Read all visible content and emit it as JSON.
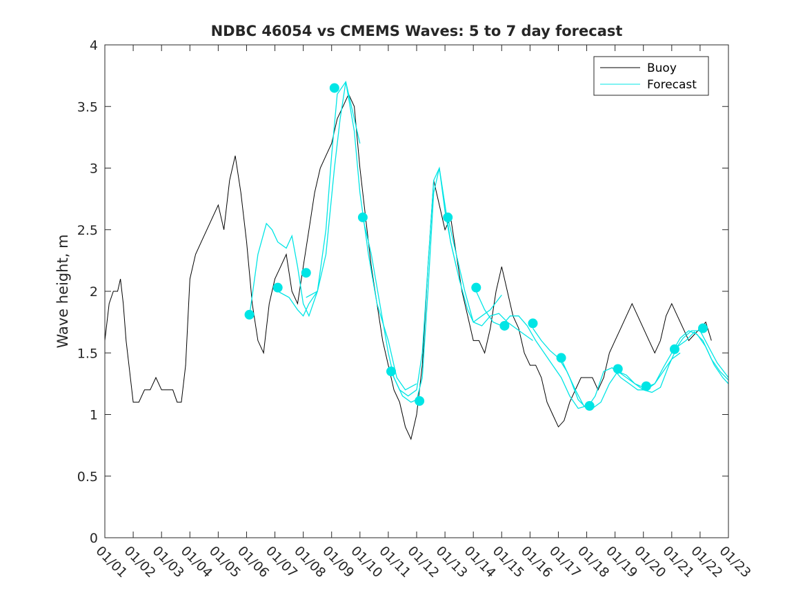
{
  "chart_data": {
    "type": "line",
    "title": "NDBC 46054 vs CMEMS Waves: 5 to 7 day forecast",
    "xlabel": "",
    "ylabel": "Wave height, m",
    "xlim": [
      0,
      22
    ],
    "ylim": [
      0,
      4
    ],
    "x_ticks": [
      0,
      1,
      2,
      3,
      4,
      5,
      6,
      7,
      8,
      9,
      10,
      11,
      12,
      13,
      14,
      15,
      16,
      17,
      18,
      19,
      20,
      21,
      22
    ],
    "x_tick_labels": [
      "01/01",
      "01/02",
      "01/03",
      "01/04",
      "01/05",
      "01/06",
      "01/07",
      "01/08",
      "01/09",
      "01/10",
      "01/11",
      "01/12",
      "01/13",
      "01/14",
      "01/15",
      "01/16",
      "01/17",
      "01/18",
      "01/19",
      "01/20",
      "01/21",
      "01/22",
      "01/23"
    ],
    "y_ticks": [
      0,
      0.5,
      1,
      1.5,
      2,
      2.5,
      3,
      3.5,
      4
    ],
    "y_tick_labels": [
      "0",
      "0.5",
      "1",
      "1.5",
      "2",
      "2.5",
      "3",
      "3.5",
      "4"
    ],
    "legend": {
      "position": "top-right",
      "entries": [
        {
          "name": "Buoy",
          "color": "#000000"
        },
        {
          "name": "Forecast",
          "color": "#00e5e5"
        }
      ]
    },
    "series": [
      {
        "name": "Buoy",
        "color": "#000000",
        "x": [
          0.0,
          0.15,
          0.3,
          0.45,
          0.55,
          0.65,
          0.75,
          0.9,
          1.0,
          1.2,
          1.4,
          1.6,
          1.8,
          2.0,
          2.2,
          2.4,
          2.55,
          2.7,
          2.85,
          3.0,
          3.2,
          3.4,
          3.6,
          3.8,
          4.0,
          4.2,
          4.4,
          4.6,
          4.8,
          5.0,
          5.2,
          5.4,
          5.6,
          5.8,
          6.0,
          6.2,
          6.4,
          6.6,
          6.8,
          7.0,
          7.2,
          7.4,
          7.6,
          7.8,
          8.0,
          8.2,
          8.4,
          8.6,
          8.8,
          9.0,
          9.2,
          9.4,
          9.6,
          9.8,
          10.0,
          10.2,
          10.4,
          10.6,
          10.8,
          11.0,
          11.2,
          11.4,
          11.6,
          11.8,
          12.0,
          12.2,
          12.4,
          12.6,
          12.8,
          13.0,
          13.2,
          13.4,
          13.6,
          13.8,
          14.0,
          14.2,
          14.4,
          14.6,
          14.8,
          15.0,
          15.2,
          15.4,
          15.6,
          15.8,
          16.0,
          16.2,
          16.4,
          16.6,
          16.8,
          17.0,
          17.2,
          17.4,
          17.6,
          17.8,
          18.0,
          18.2,
          18.4,
          18.6,
          18.8,
          19.0,
          19.2,
          19.4,
          19.6,
          19.8,
          20.0,
          20.2,
          20.4,
          20.6,
          20.8,
          21.0,
          21.2,
          21.4
        ],
        "values": [
          1.6,
          1.9,
          2.0,
          2.0,
          2.1,
          1.9,
          1.6,
          1.3,
          1.1,
          1.1,
          1.2,
          1.2,
          1.3,
          1.2,
          1.2,
          1.2,
          1.1,
          1.1,
          1.4,
          2.1,
          2.3,
          2.4,
          2.5,
          2.6,
          2.7,
          2.5,
          2.9,
          3.1,
          2.8,
          2.4,
          1.9,
          1.6,
          1.5,
          1.9,
          2.1,
          2.2,
          2.3,
          2.0,
          1.9,
          2.2,
          2.5,
          2.8,
          3.0,
          3.1,
          3.2,
          3.4,
          3.5,
          3.6,
          3.5,
          3.0,
          2.6,
          2.2,
          1.9,
          1.6,
          1.4,
          1.2,
          1.1,
          0.9,
          0.8,
          1.0,
          1.4,
          2.2,
          2.9,
          2.7,
          2.5,
          2.6,
          2.3,
          2.0,
          1.8,
          1.6,
          1.6,
          1.5,
          1.7,
          2.0,
          2.2,
          2.0,
          1.8,
          1.7,
          1.5,
          1.4,
          1.4,
          1.3,
          1.1,
          1.0,
          0.9,
          0.95,
          1.1,
          1.2,
          1.3,
          1.3,
          1.3,
          1.2,
          1.3,
          1.5,
          1.6,
          1.7,
          1.8,
          1.9,
          1.8,
          1.7,
          1.6,
          1.5,
          1.6,
          1.8,
          1.9,
          1.8,
          1.7,
          1.6,
          1.65,
          1.7,
          1.75,
          1.6
        ]
      },
      {
        "name": "Forecast",
        "color": "#00e5e5",
        "segments": [
          {
            "x": [
              5.1,
              5.4,
              5.7,
              5.9,
              6.1,
              6.4,
              6.6,
              6.8,
              7.0,
              7.2,
              7.5
            ],
            "values": [
              1.8,
              2.3,
              2.55,
              2.5,
              2.4,
              2.35,
              2.45,
              2.2,
              1.9,
              1.8,
              2.0
            ]
          },
          {
            "x": [
              6.1,
              6.5,
              6.8,
              7.0,
              7.2,
              7.5,
              7.8,
              8.1,
              8.3,
              8.5,
              8.8,
              9.0
            ],
            "values": [
              2.0,
              1.95,
              1.85,
              1.8,
              1.9,
              2.0,
              2.3,
              3.0,
              3.4,
              3.7,
              3.4,
              3.2
            ]
          },
          {
            "x": [
              7.1,
              7.5,
              7.8,
              8.0,
              8.2,
              8.5,
              8.8,
              9.0,
              9.3,
              9.6,
              10.0,
              10.3,
              10.6,
              11.0
            ],
            "values": [
              1.95,
              2.0,
              2.5,
              3.1,
              3.6,
              3.7,
              3.3,
              2.8,
              2.3,
              1.9,
              1.6,
              1.3,
              1.2,
              1.25
            ]
          },
          {
            "x": [
              9.1,
              9.4,
              9.7,
              10.0,
              10.2,
              10.5,
              10.8,
              11.0,
              11.2,
              11.4,
              11.6,
              11.8,
              12.0,
              12.2,
              12.4
            ],
            "values": [
              2.6,
              2.3,
              1.9,
              1.5,
              1.3,
              1.15,
              1.1,
              1.12,
              1.3,
              2.0,
              2.8,
              3.0,
              2.7,
              2.4,
              2.2
            ]
          },
          {
            "x": [
              10.1,
              10.4,
              10.7,
              11.0,
              11.2,
              11.4,
              11.6,
              11.8,
              12.0,
              12.2,
              12.5,
              12.8,
              13.0,
              13.3,
              13.6,
              14.0
            ],
            "values": [
              1.35,
              1.2,
              1.15,
              1.2,
              1.5,
              2.2,
              2.9,
              3.0,
              2.65,
              2.4,
              2.1,
              1.85,
              1.75,
              1.8,
              1.85,
              1.97
            ]
          },
          {
            "x": [
              12.1,
              12.4,
              12.7,
              13.0,
              13.3,
              13.6,
              13.9,
              14.2,
              14.5,
              14.8,
              15.1
            ],
            "values": [
              2.6,
              2.3,
              2.0,
              1.75,
              1.72,
              1.8,
              1.82,
              1.75,
              1.7,
              1.65,
              1.6
            ]
          },
          {
            "x": [
              13.1,
              13.4,
              13.7,
              14.0,
              14.3,
              14.6,
              14.9,
              15.2,
              15.5,
              15.8,
              16.1,
              16.4,
              16.7,
              17.0
            ],
            "values": [
              2.0,
              1.85,
              1.75,
              1.72,
              1.8,
              1.8,
              1.72,
              1.6,
              1.5,
              1.4,
              1.3,
              1.15,
              1.05,
              1.07
            ]
          },
          {
            "x": [
              15.1,
              15.4,
              15.7,
              16.0,
              16.3,
              16.6,
              16.9,
              17.2,
              17.5,
              17.8,
              18.1,
              18.4,
              18.7,
              19.0
            ],
            "values": [
              1.7,
              1.6,
              1.52,
              1.46,
              1.35,
              1.2,
              1.07,
              1.05,
              1.1,
              1.25,
              1.35,
              1.32,
              1.25,
              1.22
            ]
          },
          {
            "x": [
              16.1,
              16.4,
              16.7,
              17.0,
              17.3,
              17.6,
              17.9,
              18.2,
              18.5,
              18.8,
              19.1,
              19.4,
              19.7,
              20.0,
              20.3
            ],
            "values": [
              1.45,
              1.3,
              1.12,
              1.05,
              1.15,
              1.35,
              1.38,
              1.3,
              1.25,
              1.2,
              1.2,
              1.25,
              1.35,
              1.45,
              1.5
            ]
          },
          {
            "x": [
              18.1,
              18.4,
              18.7,
              19.0,
              19.3,
              19.6,
              19.9,
              20.2,
              20.5,
              20.8,
              21.1,
              21.4,
              21.7,
              22.0
            ],
            "values": [
              1.35,
              1.3,
              1.25,
              1.2,
              1.18,
              1.22,
              1.4,
              1.55,
              1.6,
              1.67,
              1.6,
              1.45,
              1.35,
              1.28
            ]
          },
          {
            "x": [
              19.1,
              19.4,
              19.7,
              20.0,
              20.3,
              20.6,
              20.9,
              21.2,
              21.5,
              21.8,
              22.0
            ],
            "values": [
              1.22,
              1.25,
              1.38,
              1.5,
              1.62,
              1.68,
              1.65,
              1.55,
              1.4,
              1.3,
              1.25
            ]
          },
          {
            "x": [
              20.1,
              20.4,
              20.7,
              21.0,
              21.3,
              21.6,
              22.0
            ],
            "values": [
              1.52,
              1.62,
              1.68,
              1.68,
              1.55,
              1.42,
              1.3
            ]
          }
        ],
        "markers": {
          "x": [
            5.1,
            6.1,
            7.1,
            8.1,
            9.1,
            10.1,
            11.1,
            12.1,
            13.1,
            14.1,
            15.1,
            16.1,
            17.1,
            18.1,
            19.1,
            20.1,
            21.1
          ],
          "values": [
            1.81,
            2.03,
            2.15,
            3.65,
            2.6,
            1.35,
            1.11,
            2.6,
            2.03,
            1.72,
            1.74,
            1.46,
            1.07,
            1.37,
            1.23,
            1.53,
            1.7
          ]
        }
      }
    ]
  }
}
